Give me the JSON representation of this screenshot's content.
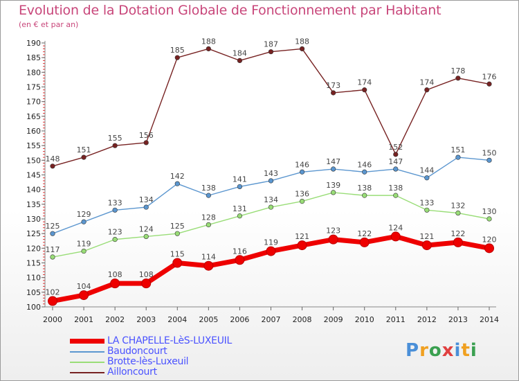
{
  "title": "Evolution de la Dotation Globale de Fonctionnement par Habitant",
  "subtitle": "(en € et par an)",
  "logo": {
    "text": "Proxiti",
    "colors": [
      "#4a8fd8",
      "#f0a020",
      "#3aa050",
      "#e04040",
      "#4a8fd8",
      "#f0a020",
      "#3aa050"
    ]
  },
  "chart_data": {
    "type": "line",
    "title": "Evolution de la Dotation Globale de Fonctionnement par Habitant",
    "subtitle": "(en € et par an)",
    "x": [
      2000,
      2001,
      2002,
      2003,
      2004,
      2005,
      2006,
      2007,
      2008,
      2009,
      2010,
      2011,
      2012,
      2013,
      2014
    ],
    "xlabel": "",
    "ylabel": "",
    "ylim": [
      100,
      190
    ],
    "ytick_step": 5,
    "grid": false,
    "legend": "bottom-left",
    "series": [
      {
        "name": "LA CHAPELLE-LèS-LUXEUIL",
        "color": "#ee0000",
        "values": [
          102,
          104,
          108,
          108,
          115,
          114,
          116,
          119,
          121,
          123,
          122,
          124,
          121,
          122,
          120
        ]
      },
      {
        "name": "Baudoncourt",
        "color": "#5b96cf",
        "values": [
          125,
          129,
          133,
          134,
          142,
          138,
          141,
          143,
          146,
          147,
          146,
          147,
          144,
          151,
          150
        ]
      },
      {
        "name": "Brotte-lès-Luxeuil",
        "color": "#99dd77",
        "values": [
          117,
          119,
          123,
          124,
          125,
          128,
          131,
          134,
          136,
          139,
          138,
          138,
          133,
          132,
          130
        ]
      },
      {
        "name": "Ailloncourt",
        "color": "#772222",
        "values": [
          148,
          151,
          155,
          156,
          185,
          188,
          184,
          187,
          188,
          173,
          174,
          152,
          174,
          178,
          176
        ]
      }
    ]
  }
}
